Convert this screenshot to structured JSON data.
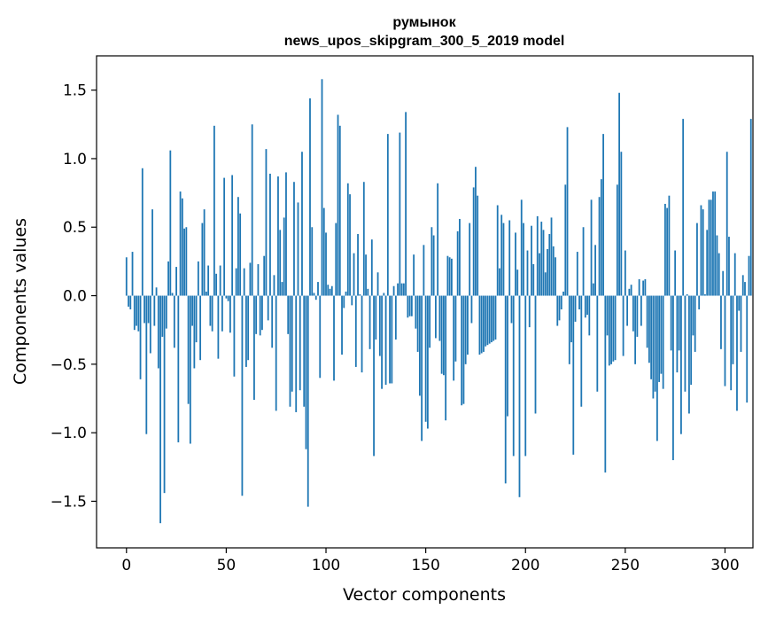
{
  "chart_data": {
    "type": "bar",
    "title": "румынок",
    "subtitle": "news_upos_skipgram_300_5_2019 model",
    "xlabel": "Vector components",
    "ylabel": "Components values",
    "xlim": [
      -15,
      314
    ],
    "ylim": [
      -1.84,
      1.75
    ],
    "xticks": [
      0,
      50,
      100,
      150,
      200,
      250,
      300
    ],
    "yticks": [
      -1.5,
      -1.0,
      -0.5,
      0.0,
      0.5,
      1.0,
      1.5
    ],
    "grid": false,
    "legend": "none",
    "bar_color": "#1f77b4",
    "values": [
      0.28,
      -0.08,
      -0.1,
      0.32,
      -0.25,
      -0.22,
      -0.26,
      -0.61,
      0.93,
      -0.2,
      -1.01,
      -0.2,
      -0.42,
      0.63,
      -0.22,
      0.06,
      -0.53,
      -1.66,
      -0.3,
      -1.44,
      -0.24,
      0.25,
      1.06,
      0.02,
      -0.38,
      0.21,
      -1.07,
      0.76,
      0.71,
      0.49,
      0.5,
      -0.79,
      -1.08,
      -0.22,
      -0.53,
      -0.34,
      0.25,
      -0.47,
      0.53,
      0.63,
      0.03,
      0.22,
      -0.22,
      -0.26,
      1.24,
      0.16,
      -0.46,
      0.22,
      -0.26,
      0.86,
      -0.02,
      -0.04,
      -0.27,
      0.88,
      -0.59,
      0.2,
      0.72,
      0.6,
      -1.46,
      0.2,
      -0.52,
      -0.47,
      0.24,
      1.25,
      -0.76,
      -0.28,
      0.23,
      -0.29,
      -0.25,
      0.29,
      1.07,
      -0.18,
      0.89,
      -0.38,
      0.15,
      -0.84,
      0.87,
      0.48,
      0.1,
      0.57,
      0.9,
      -0.28,
      -0.81,
      -0.7,
      0.83,
      -0.85,
      0.68,
      -0.69,
      1.05,
      -0.81,
      -1.12,
      -1.54,
      1.44,
      0.5,
      0.02,
      -0.03,
      0.1,
      -0.6,
      1.58,
      0.64,
      0.46,
      0.08,
      0.05,
      0.07,
      -0.62,
      0.53,
      1.32,
      1.24,
      -0.43,
      -0.09,
      0.03,
      0.82,
      0.74,
      -0.07,
      0.31,
      -0.52,
      0.45,
      0.01,
      -0.56,
      0.83,
      0.3,
      0.05,
      -0.39,
      0.41,
      -1.17,
      -0.32,
      0.17,
      -0.44,
      -0.68,
      0.02,
      -0.65,
      1.18,
      -0.64,
      -0.64,
      0.07,
      -0.32,
      0.09,
      1.19,
      0.09,
      0.09,
      1.34,
      -0.16,
      -0.15,
      -0.15,
      0.3,
      -0.24,
      -0.41,
      -0.73,
      -1.06,
      0.37,
      -0.92,
      -0.97,
      -0.38,
      0.5,
      0.44,
      -0.31,
      0.82,
      -0.33,
      -0.57,
      -0.58,
      -0.91,
      0.29,
      0.28,
      0.27,
      -0.62,
      -0.48,
      0.47,
      0.56,
      -0.8,
      -0.79,
      -0.5,
      -0.43,
      0.53,
      -0.2,
      0.79,
      0.94,
      0.73,
      -0.43,
      -0.42,
      -0.41,
      -0.37,
      -0.36,
      -0.35,
      -0.34,
      -0.33,
      -0.32,
      0.66,
      0.2,
      0.59,
      0.53,
      -1.37,
      -0.88,
      0.55,
      -0.2,
      -1.17,
      0.46,
      0.19,
      -1.47,
      0.7,
      0.53,
      -1.17,
      0.33,
      -0.23,
      0.51,
      0.23,
      -0.86,
      0.58,
      0.31,
      0.54,
      0.48,
      0.17,
      0.34,
      0.45,
      0.57,
      0.36,
      0.28,
      -0.22,
      -0.18,
      -0.1,
      0.03,
      0.81,
      1.23,
      -0.5,
      -0.34,
      -1.16,
      -0.19,
      0.32,
      -0.1,
      -0.81,
      0.5,
      -0.16,
      -0.14,
      -0.29,
      0.7,
      0.09,
      0.37,
      -0.7,
      0.72,
      0.85,
      1.18,
      -1.29,
      -0.29,
      -0.51,
      -0.5,
      -0.48,
      -0.47,
      0.81,
      1.48,
      1.05,
      -0.44,
      0.33,
      -0.22,
      0.05,
      0.08,
      -0.26,
      -0.5,
      -0.3,
      0.12,
      -0.22,
      0.11,
      0.12,
      -0.38,
      -0.49,
      -0.61,
      -0.75,
      -0.7,
      -1.06,
      -0.63,
      -0.57,
      -0.68,
      0.67,
      0.64,
      0.73,
      -0.4,
      -1.2,
      0.33,
      -0.56,
      -0.4,
      -1.01,
      1.29,
      -0.7,
      0.01,
      -0.86,
      -0.65,
      -0.29,
      -0.41,
      0.53,
      -0.1,
      0.66,
      0.63,
      0.01,
      0.48,
      0.7,
      0.7,
      0.76,
      0.76,
      0.44,
      0.31,
      -0.39,
      0.18,
      -0.66,
      1.05,
      0.43,
      -0.69,
      -0.5,
      0.31,
      -0.84,
      -0.11,
      -0.41,
      0.15,
      0.1,
      -0.78,
      0.29,
      1.29
    ]
  }
}
